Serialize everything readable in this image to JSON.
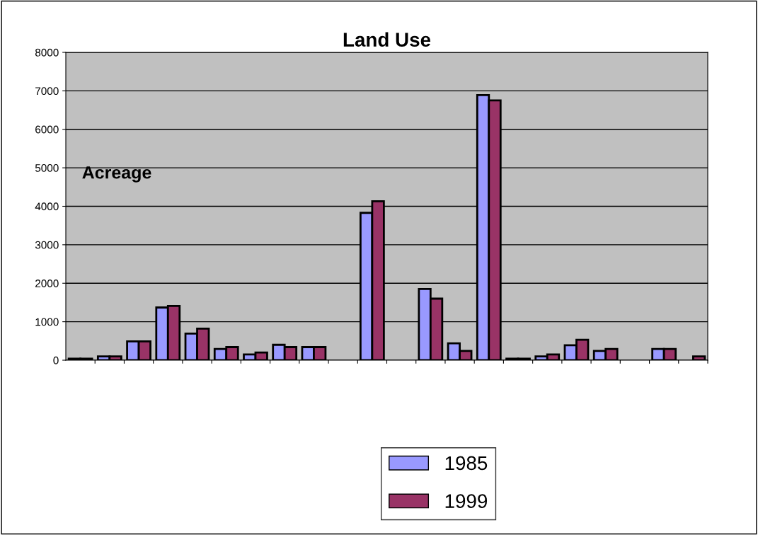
{
  "chart_data": {
    "type": "bar",
    "title": "Land Use",
    "ylabel": "Acreage",
    "categories": [
      null,
      null,
      null,
      null,
      null,
      null,
      null,
      null,
      null,
      null,
      null,
      null,
      null,
      null,
      null,
      null,
      null,
      null,
      null,
      null,
      null,
      null
    ],
    "series": [
      {
        "name": "1985",
        "color": "#9999ff",
        "values": [
          40,
          100,
          490,
          1370,
          690,
          290,
          150,
          400,
          340,
          0,
          3830,
          0,
          1850,
          440,
          6890,
          40,
          100,
          390,
          240,
          0,
          290,
          0
        ]
      },
      {
        "name": "1999",
        "color": "#993366",
        "values": [
          40,
          100,
          490,
          1410,
          820,
          340,
          200,
          340,
          340,
          0,
          4130,
          0,
          1600,
          240,
          6750,
          40,
          150,
          530,
          290,
          0,
          290,
          100
        ]
      }
    ],
    "ylim": [
      0,
      8000
    ],
    "yticks": [
      0,
      1000,
      2000,
      3000,
      4000,
      5000,
      6000,
      7000,
      8000
    ],
    "grid": "y",
    "legend": "bottom"
  }
}
